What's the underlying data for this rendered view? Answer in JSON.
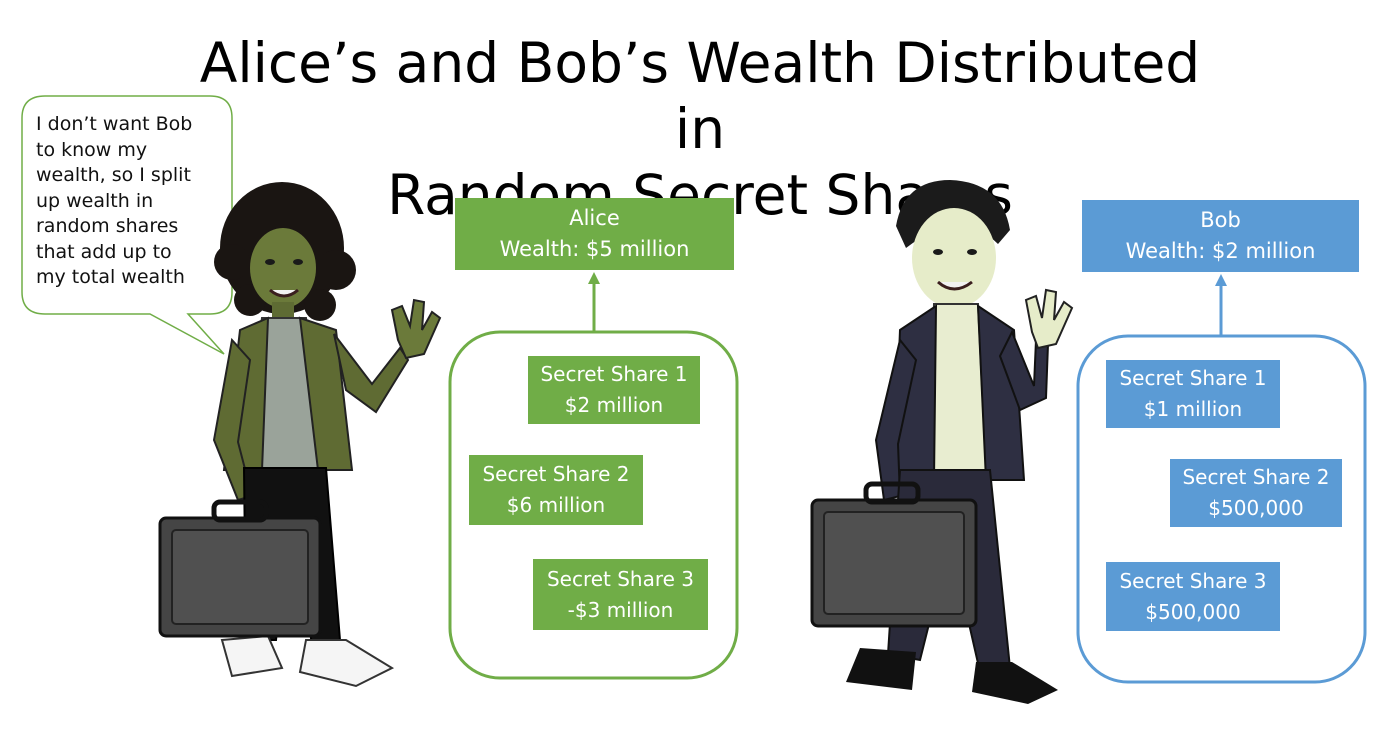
{
  "title": {
    "line1": "Alice’s and Bob’s Wealth Distributed in",
    "line2": "Random Secret Shares"
  },
  "speech_bubble": {
    "lines": [
      "I don’t want Bob",
      "to know my",
      "wealth, so I split",
      "up wealth in",
      "random  shares",
      "that add up to",
      "my total wealth"
    ]
  },
  "alice": {
    "name": "Alice",
    "wealth": "Wealth: $5 million",
    "color": "#70ad47",
    "shares": [
      {
        "label": "Secret Share 1",
        "value": "$2 million"
      },
      {
        "label": "Secret Share 2",
        "value": "$6 million"
      },
      {
        "label": "Secret Share 3",
        "value": "-$3 million"
      }
    ]
  },
  "bob": {
    "name": "Bob",
    "wealth": "Wealth: $2 million",
    "color": "#5b9bd5",
    "shares": [
      {
        "label": "Secret Share 1",
        "value": "$1 million"
      },
      {
        "label": "Secret Share 2",
        "value": "$500,000"
      },
      {
        "label": "Secret Share 3",
        "value": "$500,000"
      }
    ]
  }
}
